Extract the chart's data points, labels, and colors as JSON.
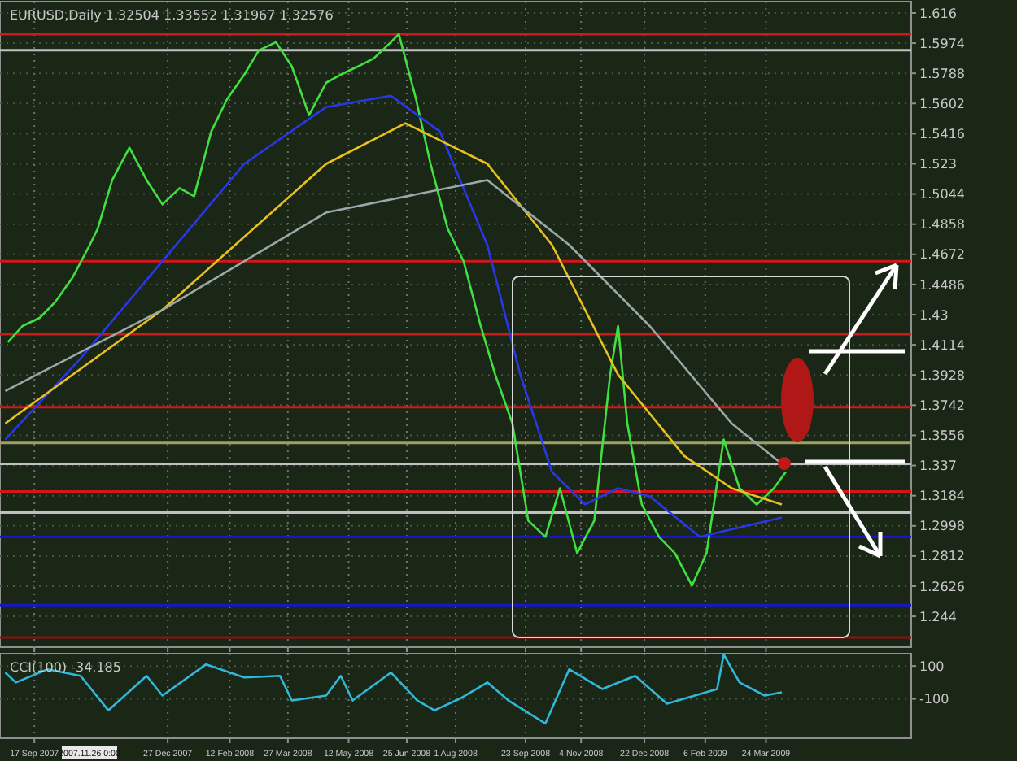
{
  "chart_data": [
    {
      "type": "line",
      "title": "EURUSD,Daily  1.32504 1.33552 1.31967 1.32576",
      "xlim": [
        "2007-08-22",
        "2009-07-12"
      ],
      "xticks": [
        {
          "value": "2007-09-17",
          "label": null
        },
        {
          "value": "2007-12-27",
          "label": null
        },
        {
          "value": "2008-02-12",
          "label": null
        },
        {
          "value": "2008-03-27",
          "label": null
        },
        {
          "value": "2008-05-12",
          "label": null
        },
        {
          "value": "2008-06-25",
          "label": null
        },
        {
          "value": "2008-08-01",
          "label": null
        },
        {
          "value": "2008-09-23",
          "label": null
        },
        {
          "value": "2008-11-04",
          "label": null
        },
        {
          "value": "2008-12-22",
          "label": null
        },
        {
          "value": "2009-02-06",
          "label": null
        },
        {
          "value": "2009-03-24",
          "label": null
        }
      ],
      "ylim": [
        1.225,
        1.623
      ],
      "yticks": [
        1.616,
        1.5974,
        1.5788,
        1.5602,
        1.5416,
        1.523,
        1.5044,
        1.4858,
        1.4672,
        1.4486,
        1.43,
        1.4114,
        1.3928,
        1.3742,
        1.3556,
        1.337,
        1.3184,
        1.2998,
        1.2812,
        1.2626,
        1.244
      ],
      "tick_labels": "y",
      "grid": true,
      "marker": "none",
      "line_style": "solid",
      "series": [
        {
          "color": "#40e040",
          "x": [
            "2007-08-28",
            "2007-09-08",
            "2007-09-21",
            "2007-10-03",
            "2007-10-16",
            "2007-10-29",
            "2007-11-04",
            "2007-11-15",
            "2007-11-28",
            "2007-12-11",
            "2007-12-23",
            "2008-01-05",
            "2008-01-16",
            "2008-01-29",
            "2008-02-10",
            "2008-02-23",
            "2008-03-05",
            "2008-03-18",
            "2008-03-30",
            "2008-04-12",
            "2008-04-25",
            "2008-05-06",
            "2008-05-19",
            "2008-05-31",
            "2008-06-13",
            "2008-06-19",
            "2008-07-02",
            "2008-07-13",
            "2008-07-26",
            "2008-08-07",
            "2008-08-20",
            "2008-08-31",
            "2008-09-13",
            "2008-09-25",
            "2008-10-08",
            "2008-10-19",
            "2008-11-01",
            "2008-11-14",
            "2008-11-26",
            "2008-12-02",
            "2008-12-09",
            "2008-12-20",
            "2009-01-02",
            "2009-01-14",
            "2009-01-27",
            "2009-02-07",
            "2009-02-20",
            "2009-03-04",
            "2009-03-17",
            "2009-03-30",
            "2009-04-08"
          ],
          "values": [
            1.413,
            1.423,
            1.428,
            1.438,
            1.453,
            1.473,
            1.483,
            1.513,
            1.533,
            1.513,
            1.498,
            1.508,
            1.503,
            1.543,
            1.563,
            1.578,
            1.593,
            1.598,
            1.583,
            1.553,
            1.573,
            1.578,
            1.583,
            1.588,
            1.598,
            1.603,
            1.563,
            1.523,
            1.483,
            1.463,
            1.423,
            1.393,
            1.363,
            1.303,
            1.293,
            1.323,
            1.283,
            1.303,
            1.393,
            1.423,
            1.363,
            1.313,
            1.293,
            1.283,
            1.263,
            1.283,
            1.353,
            1.323,
            1.313,
            1.323,
            1.333
          ]
        },
        {
          "color": "#2838e8",
          "x": [
            "2007-08-26",
            "2007-10-22",
            "2007-12-23",
            "2008-02-23",
            "2008-04-25",
            "2008-06-13",
            "2008-07-20",
            "2008-08-25",
            "2008-09-19",
            "2008-10-13",
            "2008-11-07",
            "2008-12-02",
            "2008-12-26",
            "2009-02-02",
            "2009-04-05"
          ],
          "values": [
            1.353,
            1.403,
            1.463,
            1.523,
            1.558,
            1.565,
            1.543,
            1.473,
            1.393,
            1.333,
            1.313,
            1.323,
            1.318,
            1.293,
            1.305
          ]
        },
        {
          "color": "#e8c020",
          "x": [
            "2007-08-26",
            "2007-12-23",
            "2008-04-25",
            "2008-06-24",
            "2008-08-25",
            "2008-10-13",
            "2008-12-02",
            "2009-01-21",
            "2009-02-26",
            "2009-04-05"
          ],
          "values": [
            1.363,
            1.433,
            1.523,
            1.548,
            1.523,
            1.473,
            1.393,
            1.343,
            1.323,
            1.313
          ]
        },
        {
          "color": "#9aa8a8",
          "x": [
            "2007-08-26",
            "2007-12-23",
            "2008-04-25",
            "2008-08-25",
            "2008-10-26",
            "2008-12-26",
            "2009-02-26",
            "2009-04-05"
          ],
          "values": [
            1.383,
            1.433,
            1.493,
            1.513,
            1.473,
            1.423,
            1.363,
            1.338
          ]
        }
      ],
      "ref_lines": [
        {
          "axis": "y",
          "value": 1.603,
          "color": "#d01818"
        },
        {
          "axis": "y",
          "value": 1.463,
          "color": "#d01818"
        },
        {
          "axis": "y",
          "value": 1.418,
          "color": "#d01818"
        },
        {
          "axis": "y",
          "value": 1.373,
          "color": "#d01818"
        },
        {
          "axis": "y",
          "value": 1.321,
          "color": "#d01818"
        },
        {
          "axis": "y",
          "value": 1.231,
          "color": "#901010"
        },
        {
          "axis": "y",
          "value": 1.293,
          "color": "#1818c8"
        },
        {
          "axis": "y",
          "value": 1.251,
          "color": "#1818c8"
        },
        {
          "axis": "y",
          "value": 1.593,
          "color": "#c0c0c0"
        },
        {
          "axis": "y",
          "value": 1.338,
          "color": "#c0c0c0"
        },
        {
          "axis": "y",
          "value": 1.308,
          "color": "#c0c0c0"
        },
        {
          "axis": "y",
          "value": 1.351,
          "color": "#a0a060"
        }
      ]
    },
    {
      "type": "line",
      "title": "CCI(100) -34.185",
      "annotations": [
        "2007.11.26 0:00"
      ],
      "xlim": [
        "2007-08-22",
        "2009-07-12"
      ],
      "xticks": [
        {
          "value": "2007-09-17",
          "label": "17 Sep 2007"
        },
        {
          "value": "2007-12-27",
          "label": "27 Dec 2007"
        },
        {
          "value": "2008-02-12",
          "label": "12 Feb 2008"
        },
        {
          "value": "2008-03-27",
          "label": "27 Mar 2008"
        },
        {
          "value": "2008-05-12",
          "label": "12 May 2008"
        },
        {
          "value": "2008-06-25",
          "label": "25 Jun 2008"
        },
        {
          "value": "2008-08-01",
          "label": "1 Aug 2008"
        },
        {
          "value": "2008-09-23",
          "label": "23 Sep 2008"
        },
        {
          "value": "2008-11-04",
          "label": "4 Nov 2008"
        },
        {
          "value": "2008-12-22",
          "label": "22 Dec 2008"
        },
        {
          "value": "2009-02-06",
          "label": "6 Feb 2009"
        },
        {
          "value": "2009-03-24",
          "label": "24 Mar 2009"
        }
      ],
      "ylim": [
        -340,
        175
      ],
      "yticks": [
        100,
        -100
      ],
      "grid": true,
      "marker": "none",
      "line_style": "solid",
      "series": [
        {
          "color": "#30b8d8",
          "x": [
            "2007-08-26",
            "2007-09-03",
            "2007-09-27",
            "2007-10-22",
            "2007-11-12",
            "2007-12-11",
            "2007-12-23",
            "2008-01-25",
            "2008-02-23",
            "2008-03-21",
            "2008-03-30",
            "2008-04-25",
            "2008-05-06",
            "2008-05-15",
            "2008-06-13",
            "2008-07-03",
            "2008-07-16",
            "2008-08-04",
            "2008-08-25",
            "2008-09-10",
            "2008-10-08",
            "2008-10-26",
            "2008-11-20",
            "2008-12-15",
            "2009-01-08",
            "2009-02-15",
            "2009-02-20",
            "2009-03-04",
            "2009-03-23",
            "2009-04-05"
          ],
          "values": [
            60,
            0,
            80,
            40,
            -170,
            40,
            -80,
            110,
            30,
            40,
            -110,
            -80,
            40,
            -110,
            60,
            -110,
            -170,
            -100,
            0,
            -110,
            -250,
            80,
            -40,
            40,
            -130,
            -40,
            170,
            0,
            -80,
            -60
          ]
        }
      ]
    }
  ]
}
